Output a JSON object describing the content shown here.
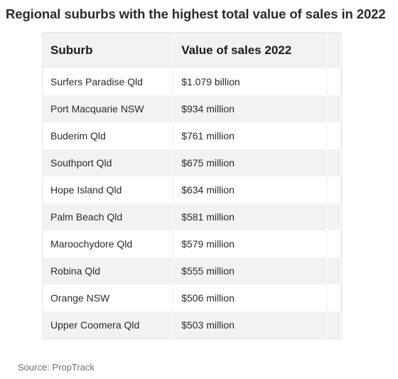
{
  "title": "Regional suburbs with the highest total value of sales in 2022",
  "table": {
    "headers": [
      "Suburb",
      "Value of sales 2022"
    ],
    "rows": [
      [
        "Surfers Paradise Qld",
        "$1.079 billion"
      ],
      [
        "Port Macquarie NSW",
        "$934 million"
      ],
      [
        "Buderim Qld",
        "$761 million"
      ],
      [
        "Southport Qld",
        "$675 million"
      ],
      [
        "Hope Island Qld",
        "$634 million"
      ],
      [
        "Palm Beach Qld",
        "$581 million"
      ],
      [
        "Maroochydore Qld",
        "$579 million"
      ],
      [
        "Robina Qld",
        "$555 million"
      ],
      [
        "Orange NSW",
        "$506 million"
      ],
      [
        "Upper Coomera Qld",
        "$503 million"
      ]
    ]
  },
  "source": "Source: PropTrack"
}
